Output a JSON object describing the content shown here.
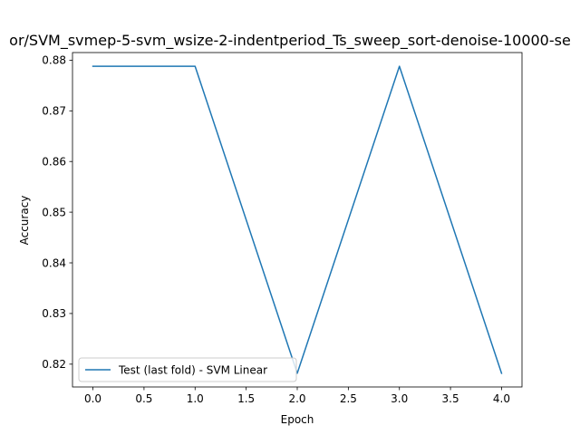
{
  "chart_data": {
    "type": "line",
    "title": "or/SVM_svmep-5-svm_wsize-2-indentperiod_Ts_sweep_sort-denoise-10000-se",
    "xlabel": "Epoch",
    "ylabel": "Accuracy",
    "xlim": [
      -0.2,
      4.2
    ],
    "ylim": [
      0.8155,
      0.8815
    ],
    "x_ticks": [
      0.0,
      0.5,
      1.0,
      1.5,
      2.0,
      2.5,
      3.0,
      3.5,
      4.0
    ],
    "x_tick_labels": [
      "0.0",
      "0.5",
      "1.0",
      "1.5",
      "2.0",
      "2.5",
      "3.0",
      "3.5",
      "4.0"
    ],
    "y_ticks": [
      0.82,
      0.83,
      0.84,
      0.85,
      0.86,
      0.87,
      0.88
    ],
    "y_tick_labels": [
      "0.82",
      "0.83",
      "0.84",
      "0.85",
      "0.86",
      "0.87",
      "0.88"
    ],
    "grid": false,
    "legend_position": "lower-left",
    "series": [
      {
        "name": "Test (last fold) - SVM Linear",
        "color": "#1f77b4",
        "x": [
          0,
          1,
          2,
          3,
          4
        ],
        "y": [
          0.8788,
          0.8788,
          0.8182,
          0.8788,
          0.8182
        ]
      }
    ]
  }
}
